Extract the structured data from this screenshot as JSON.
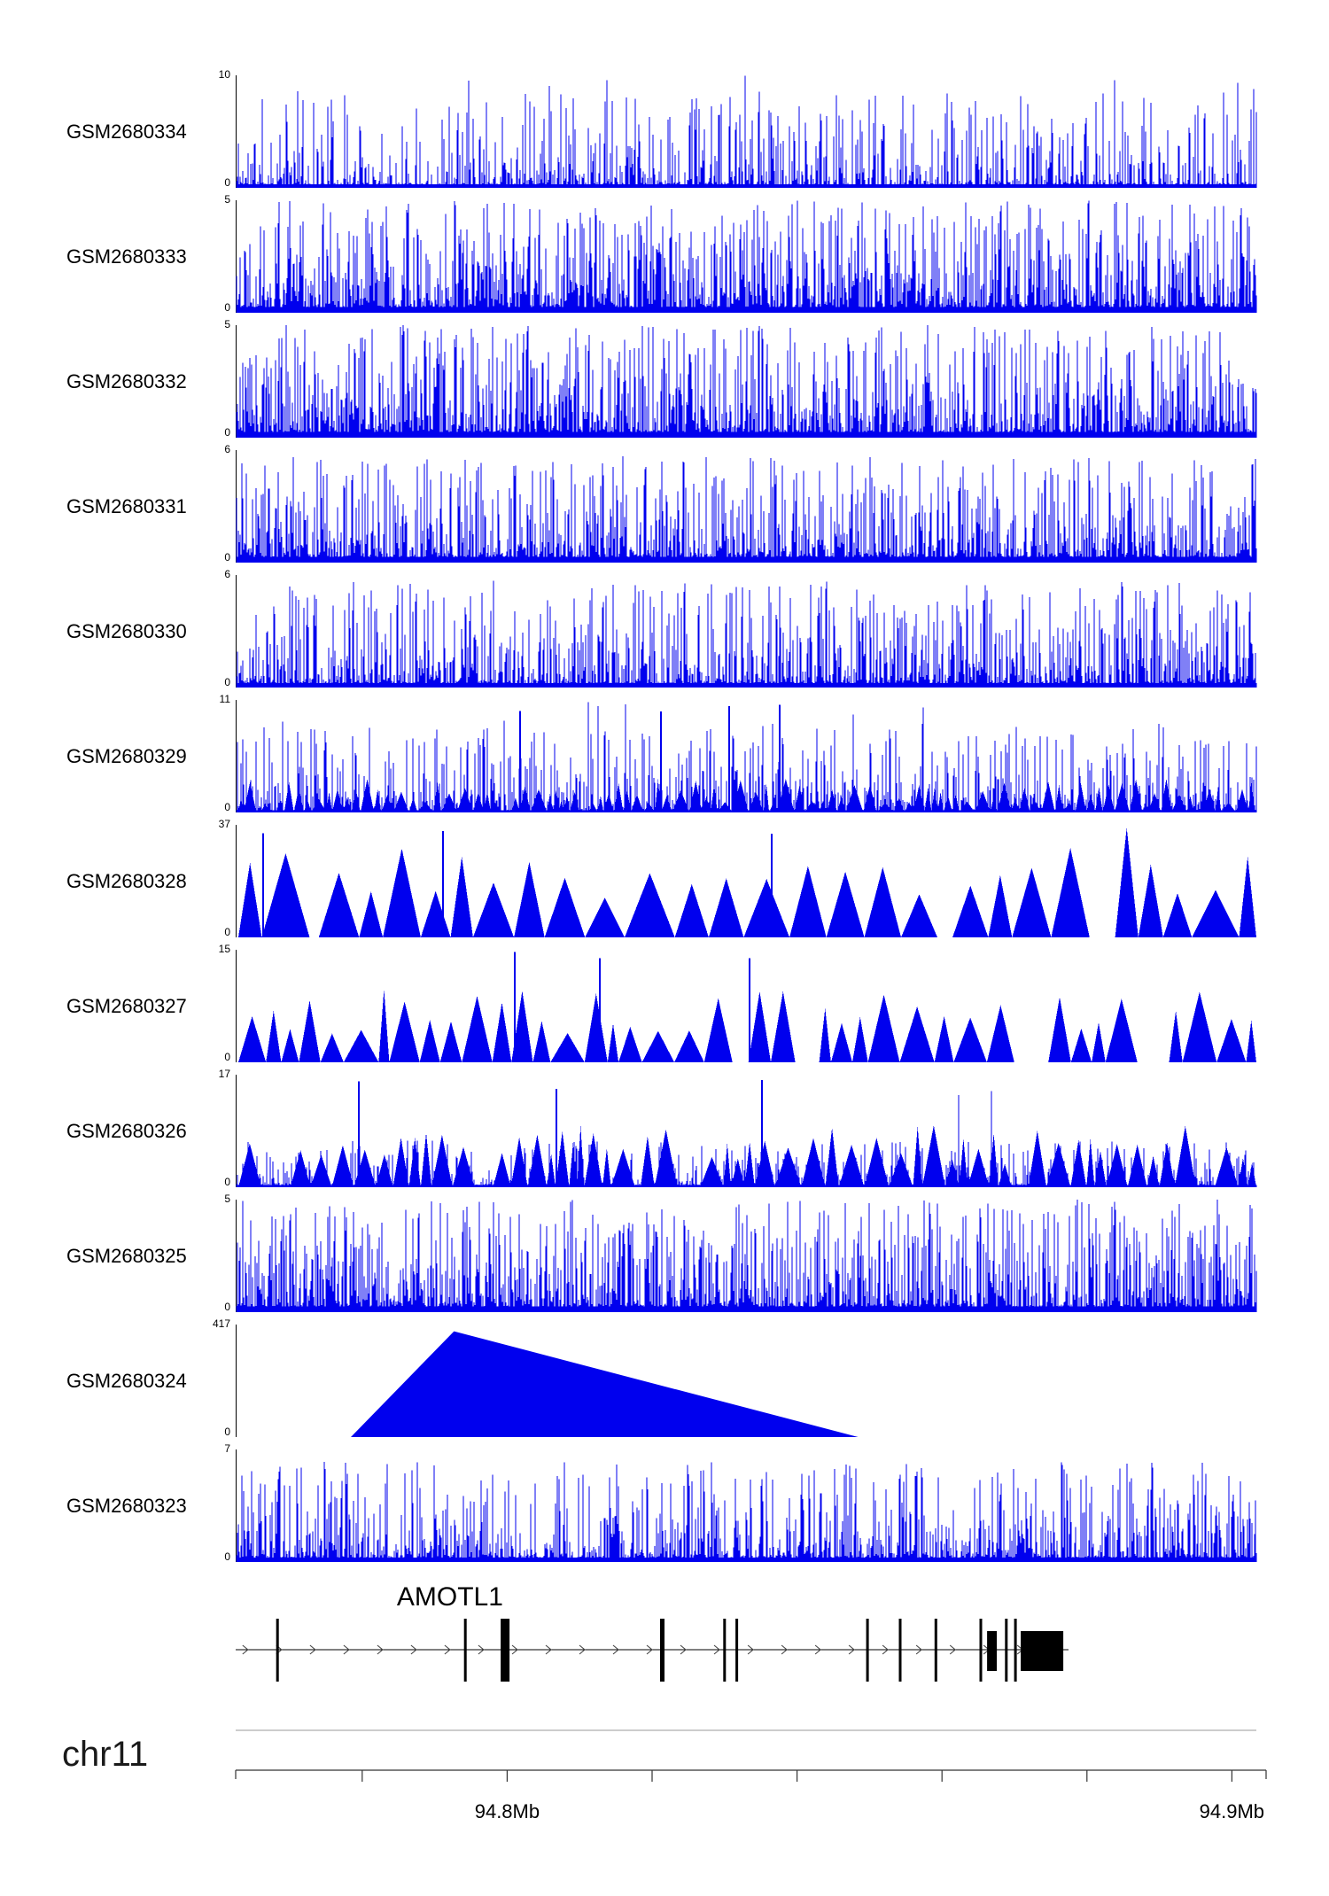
{
  "figure": {
    "chromosome_label": "chr11",
    "y_baseline_label": "0",
    "signal_color": "#0000ee",
    "axis_color": "#000000"
  },
  "chart_data": {
    "type": "area",
    "title": "",
    "description": "Stacked genome-browser read-coverage tracks (GEO samples) over chr11 ~94.76-94.90 Mb spanning the AMOTL1 gene",
    "x_axis": {
      "chromosome": "chr11",
      "tick_labels": [
        {
          "text": "94.8Mb",
          "pos": 0.266
        },
        {
          "text": "94.9Mb",
          "pos": 0.976
        }
      ],
      "minor_ticks": [
        0.124,
        0.266,
        0.408,
        0.55,
        0.692,
        0.834,
        0.976
      ]
    },
    "tracks": [
      {
        "name": "GSM2680334",
        "ymax": 10,
        "ymin": 0,
        "style": "spikes",
        "seed": 11,
        "params": {
          "base": 0.03,
          "amp": 0.82,
          "pow": 5.0,
          "tallProb": 0.005
        }
      },
      {
        "name": "GSM2680333",
        "ymax": 5,
        "ymin": 0,
        "style": "spikes",
        "seed": 22,
        "params": {
          "base": 0.05,
          "amp": 0.95,
          "pow": 2.6,
          "tallProb": 0.003
        }
      },
      {
        "name": "GSM2680332",
        "ymax": 5,
        "ymin": 0,
        "style": "spikes",
        "seed": 33,
        "params": {
          "base": 0.05,
          "amp": 0.95,
          "pow": 2.8,
          "tallProb": 0.003
        }
      },
      {
        "name": "GSM2680331",
        "ymax": 6,
        "ymin": 0,
        "style": "spikes",
        "seed": 44,
        "params": {
          "base": 0.05,
          "amp": 0.9,
          "pow": 3.0,
          "tallProb": 0.003
        }
      },
      {
        "name": "GSM2680330",
        "ymax": 6,
        "ymin": 0,
        "style": "spikes",
        "seed": 55,
        "params": {
          "base": 0.04,
          "amp": 0.9,
          "pow": 3.4,
          "tallProb": 0.003
        }
      },
      {
        "name": "GSM2680329",
        "ymax": 11,
        "ymin": 0,
        "style": "peaks",
        "seed": 66,
        "params": {
          "wMin": 6,
          "wMax": 20,
          "hMin": 0.08,
          "hMax": 0.3,
          "gapProb": 0.05,
          "gapMax": 12,
          "bigProb": 0,
          "spikeCount": 4,
          "spikeMin": 0.85,
          "under": {
            "base": 0.02,
            "amp": 0.75,
            "pow": 4.2,
            "tallProb": 0.008
          }
        }
      },
      {
        "name": "GSM2680328",
        "ymax": 37,
        "ymin": 0,
        "style": "peaks",
        "seed": 77,
        "params": {
          "wMin": 25,
          "wMax": 60,
          "hMin": 0.35,
          "hMax": 0.8,
          "gapProb": 0.08,
          "gapMax": 30,
          "bigProb": 0.02,
          "spikeCount": 3,
          "spikeMin": 0.9
        }
      },
      {
        "name": "GSM2680327",
        "ymax": 15,
        "ymin": 0,
        "style": "peaks",
        "seed": 88,
        "params": {
          "wMin": 12,
          "wMax": 40,
          "hMin": 0.25,
          "hMax": 0.65,
          "gapProb": 0.1,
          "gapMax": 35,
          "bigProb": 0.015,
          "spikeCount": 3,
          "spikeMin": 0.9
        }
      },
      {
        "name": "GSM2680326",
        "ymax": 17,
        "ymin": 0,
        "style": "peaks",
        "seed": 99,
        "params": {
          "wMin": 8,
          "wMax": 30,
          "hMin": 0.2,
          "hMax": 0.55,
          "gapProb": 0.08,
          "gapMax": 25,
          "bigProb": 0.01,
          "spikeCount": 3,
          "spikeMin": 0.85,
          "under": {
            "base": 0.02,
            "amp": 0.4,
            "pow": 5.0,
            "tallProb": 0.002
          }
        }
      },
      {
        "name": "GSM2680325",
        "ymax": 5,
        "ymin": 0,
        "style": "spikes",
        "seed": 110,
        "params": {
          "base": 0.05,
          "amp": 0.95,
          "pow": 2.7,
          "tallProb": 0.003
        }
      },
      {
        "name": "GSM2680324",
        "ymax": 417,
        "ymin": 0,
        "style": "mountain",
        "seed": 121,
        "params": {
          "points": [
            [
              0.112,
              0
            ],
            [
              0.213,
              0.94
            ],
            [
              0.609,
              0
            ]
          ]
        }
      },
      {
        "name": "GSM2680323",
        "ymax": 7,
        "ymin": 0,
        "style": "spikes",
        "seed": 132,
        "params": {
          "base": 0.04,
          "amp": 0.85,
          "pow": 3.6,
          "tallProb": 0.002
        }
      }
    ],
    "gene": {
      "name": "AMOTL1",
      "strand": "+",
      "line_end": 0.816,
      "label_center": 0.21,
      "arrow_spacing": 0.033,
      "exons": [
        {
          "pos": 0.041,
          "w": 3,
          "t": "tall"
        },
        {
          "pos": 0.225,
          "w": 3,
          "t": "tall"
        },
        {
          "pos": 0.264,
          "w": 10,
          "t": "tall"
        },
        {
          "pos": 0.418,
          "w": 5,
          "t": "tall"
        },
        {
          "pos": 0.479,
          "w": 3,
          "t": "tall"
        },
        {
          "pos": 0.491,
          "w": 3,
          "t": "tall"
        },
        {
          "pos": 0.619,
          "w": 3,
          "t": "tall"
        },
        {
          "pos": 0.651,
          "w": 3,
          "t": "tall"
        },
        {
          "pos": 0.686,
          "w": 3,
          "t": "tall"
        },
        {
          "pos": 0.73,
          "w": 3,
          "t": "tall"
        },
        {
          "pos": 0.741,
          "w": 11,
          "t": "box"
        },
        {
          "pos": 0.755,
          "w": 3,
          "t": "tall"
        },
        {
          "pos": 0.764,
          "w": 3,
          "t": "tall"
        },
        {
          "pos": 0.79,
          "w": 48,
          "t": "box"
        }
      ]
    }
  }
}
